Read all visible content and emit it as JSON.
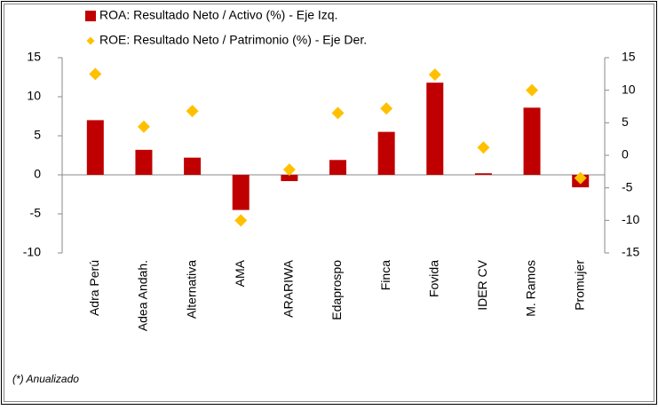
{
  "chart_data": {
    "type": "bar",
    "categories": [
      "Adra Perú",
      "Adea Andah.",
      "Alternativa",
      "AMA",
      "ARARIWA",
      "Edaprospo",
      "Finca",
      "Fovida",
      "IDER CV",
      "M. Ramos",
      "Promujer"
    ],
    "series": [
      {
        "name": "ROA: Resultado Neto / Activo (%) - Eje Izq.",
        "type": "bar",
        "color": "#c00000",
        "values": [
          7.0,
          3.2,
          2.2,
          -4.5,
          -0.8,
          1.9,
          5.5,
          11.8,
          0.2,
          8.6,
          -1.6
        ]
      },
      {
        "name": "ROE: Resultado Neto / Patrimonio (%) - Eje Der.",
        "type": "scatter",
        "axis": "y2",
        "color": "#ffc000",
        "values": [
          12.5,
          4.4,
          6.8,
          -10.0,
          -2.2,
          6.5,
          7.2,
          12.4,
          1.2,
          10.0,
          -3.5
        ]
      }
    ],
    "ylim": [
      -10,
      15
    ],
    "yticks": [
      15,
      10,
      5,
      0,
      -5,
      -10
    ],
    "y2lim": [
      -15,
      15
    ],
    "y2ticks": [
      15,
      10,
      5,
      0,
      -5,
      -10,
      -15
    ],
    "annotation": "(*) Anualizado"
  }
}
